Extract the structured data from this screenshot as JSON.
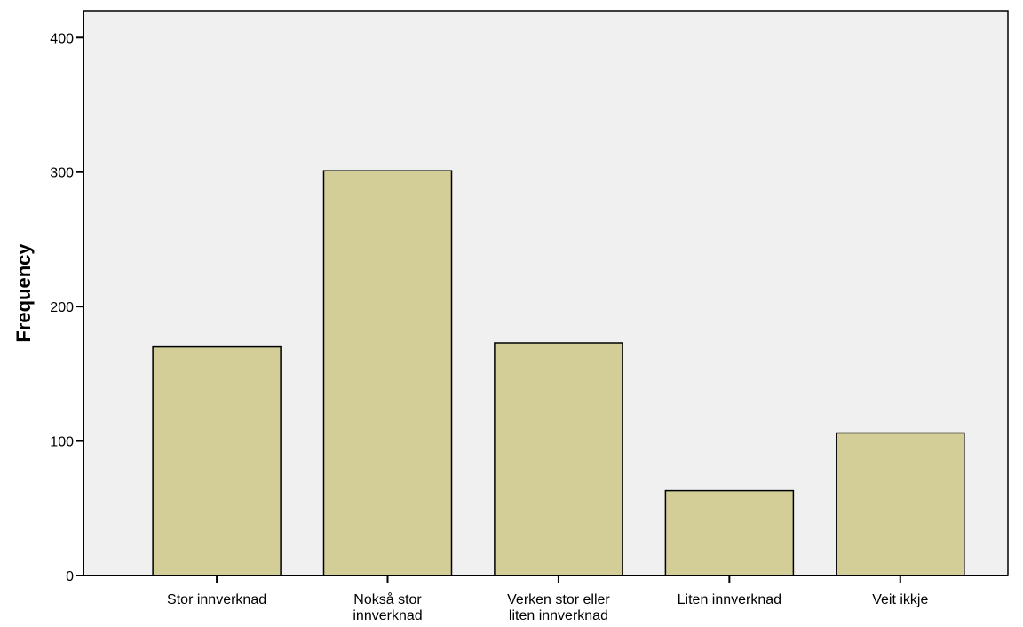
{
  "chart_data": {
    "type": "bar",
    "title": "",
    "xlabel": "",
    "ylabel": "Frequency",
    "categories": [
      [
        "Stor innverknad"
      ],
      [
        "Nokså stor",
        "innverknad"
      ],
      [
        "Verken stor eller",
        "liten innverknad"
      ],
      [
        "Liten innverknad"
      ],
      [
        "Veit ikkje"
      ]
    ],
    "values": [
      170,
      301,
      173,
      63,
      106
    ],
    "ylim": [
      0,
      420
    ],
    "yticks": [
      0,
      100,
      200,
      300,
      400
    ],
    "grid": false,
    "legend": "none",
    "colors": {
      "plot_background": "#f0f0f0",
      "bar_fill": "#d3ce97",
      "bar_stroke": "#000000"
    }
  }
}
